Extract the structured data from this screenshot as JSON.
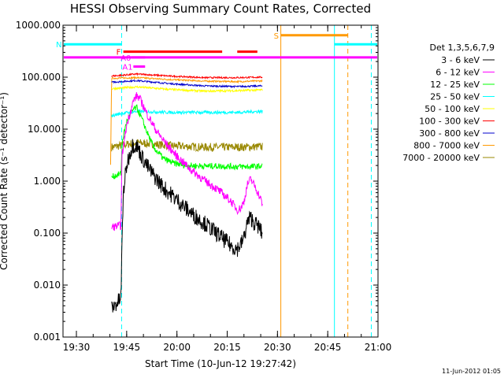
{
  "chart_data": {
    "type": "line",
    "title": "HESSI Observing Summary Count Rates, Corrected",
    "xlabel": "Start Time (10-Jun-12 19:27:42)",
    "ylabel": "Corrected Count Rate (s⁻¹ detector⁻¹)",
    "y_scale": "log",
    "ylim": [
      0.001,
      1000
    ],
    "xlim_minutes": [
      -2,
      92
    ],
    "x_ticks": [
      {
        "t": 2,
        "label": "19:30"
      },
      {
        "t": 17,
        "label": "19:45"
      },
      {
        "t": 32,
        "label": "20:00"
      },
      {
        "t": 47,
        "label": "20:15"
      },
      {
        "t": 62,
        "label": "20:30"
      },
      {
        "t": 77,
        "label": "20:45"
      },
      {
        "t": 92,
        "label": "21:00"
      }
    ],
    "y_ticks": [
      {
        "v": 0.001,
        "label": "0.001"
      },
      {
        "v": 0.01,
        "label": "0.010"
      },
      {
        "v": 0.1,
        "label": "0.100"
      },
      {
        "v": 1,
        "label": "1.000"
      },
      {
        "v": 10,
        "label": "10.000"
      },
      {
        "v": 100,
        "label": "100.000"
      },
      {
        "v": 1000,
        "label": "1000.000"
      }
    ],
    "legend_title": "Det 1,3,5,6,7,9",
    "legend_placement": "right",
    "series": [
      {
        "name": "3 - 6 keV",
        "color": "#000000",
        "noise": 0.16,
        "points": [
          [
            12.5,
            0.0035
          ],
          [
            15.3,
            0.0055
          ],
          [
            15.5,
            0.03
          ],
          [
            16,
            0.6
          ],
          [
            17,
            2.0
          ],
          [
            18,
            3.5
          ],
          [
            18.8,
            5.0
          ],
          [
            20,
            4.8
          ],
          [
            21.5,
            3.0
          ],
          [
            23,
            2.0
          ],
          [
            25,
            1.3
          ],
          [
            28,
            0.75
          ],
          [
            31,
            0.5
          ],
          [
            34,
            0.33
          ],
          [
            37,
            0.22
          ],
          [
            40,
            0.16
          ],
          [
            43,
            0.11
          ],
          [
            46,
            0.075
          ],
          [
            48.5,
            0.055
          ],
          [
            50,
            0.05
          ],
          [
            51,
            0.06
          ],
          [
            52,
            0.08
          ],
          [
            53,
            0.16
          ],
          [
            54,
            0.2
          ],
          [
            55,
            0.16
          ],
          [
            56.5,
            0.13
          ],
          [
            57.5,
            0.095
          ]
        ]
      },
      {
        "name": "6 - 12 keV",
        "color": "#ff00ff",
        "noise": 0.08,
        "points": [
          [
            12.5,
            0.13
          ],
          [
            15.3,
            0.14
          ],
          [
            15.6,
            3.0
          ],
          [
            17,
            12
          ],
          [
            19,
            35
          ],
          [
            20,
            44
          ],
          [
            21,
            38
          ],
          [
            23,
            20
          ],
          [
            26,
            9
          ],
          [
            29,
            5
          ],
          [
            32,
            3
          ],
          [
            36,
            1.7
          ],
          [
            40,
            1.05
          ],
          [
            44,
            0.7
          ],
          [
            48,
            0.42
          ],
          [
            50,
            0.28
          ],
          [
            51,
            0.3
          ],
          [
            52,
            0.4
          ],
          [
            53,
            0.85
          ],
          [
            54,
            1.1
          ],
          [
            55.5,
            0.75
          ],
          [
            57,
            0.45
          ],
          [
            57.5,
            0.36
          ]
        ]
      },
      {
        "name": "12 - 25 keV",
        "color": "#00ff00",
        "noise": 0.06,
        "points": [
          [
            12.5,
            1.2
          ],
          [
            15.3,
            1.4
          ],
          [
            15.7,
            6
          ],
          [
            17,
            14
          ],
          [
            19,
            24
          ],
          [
            20,
            26
          ],
          [
            21.5,
            16
          ],
          [
            23,
            9
          ],
          [
            25,
            4.5
          ],
          [
            28,
            2.7
          ],
          [
            31,
            2.2
          ],
          [
            35,
            2.0
          ],
          [
            40,
            1.95
          ],
          [
            45,
            1.95
          ],
          [
            50,
            1.9
          ],
          [
            55,
            1.9
          ],
          [
            57.5,
            1.95
          ]
        ]
      },
      {
        "name": "25 - 50 keV",
        "color": "#00ffff",
        "noise": 0.03,
        "points": [
          [
            12.5,
            18
          ],
          [
            15.3,
            20
          ],
          [
            20,
            22
          ],
          [
            30,
            21
          ],
          [
            40,
            21
          ],
          [
            50,
            21
          ],
          [
            57.5,
            22
          ]
        ]
      },
      {
        "name": "50 - 100 keV",
        "color": "#ffff00",
        "noise": 0.02,
        "points": [
          [
            12.5,
            60
          ],
          [
            20,
            65
          ],
          [
            30,
            58
          ],
          [
            40,
            54
          ],
          [
            50,
            55
          ],
          [
            57.5,
            57
          ]
        ]
      },
      {
        "name": "100 - 300 keV",
        "color": "#ff0000",
        "noise": 0.015,
        "points": [
          [
            12.5,
            105
          ],
          [
            20,
            115
          ],
          [
            30,
            105
          ],
          [
            40,
            98
          ],
          [
            50,
            98
          ],
          [
            57.5,
            100
          ]
        ]
      },
      {
        "name": "300 - 800 keV",
        "color": "#0000cc",
        "noise": 0.015,
        "points": [
          [
            12.5,
            80
          ],
          [
            20,
            86
          ],
          [
            30,
            75
          ],
          [
            40,
            68
          ],
          [
            50,
            66
          ],
          [
            57.5,
            68
          ]
        ]
      },
      {
        "name": "800 - 7000 keV",
        "color": "#ff9900",
        "noise": 0.015,
        "points": [
          [
            12.2,
            2.0
          ],
          [
            12.5,
            95
          ],
          [
            20,
            98
          ],
          [
            30,
            90
          ],
          [
            40,
            84
          ],
          [
            50,
            82
          ],
          [
            57.5,
            85
          ]
        ]
      },
      {
        "name": "7000 - 20000 keV",
        "color": "#998800",
        "noise": 0.08,
        "points": [
          [
            12.5,
            4.5
          ],
          [
            20,
            5.5
          ],
          [
            30,
            4.8
          ],
          [
            40,
            4.5
          ],
          [
            50,
            4.5
          ],
          [
            57.5,
            4.6
          ]
        ]
      }
    ],
    "flags": [
      {
        "label": "N",
        "color": "#00ffff",
        "y": 430,
        "segments": [
          [
            -2,
            15.5
          ],
          [
            79,
            92
          ]
        ]
      },
      {
        "label": "S",
        "color": "#ff9900",
        "y": 640,
        "segments": [
          [
            63,
            83
          ]
        ]
      },
      {
        "label": "F",
        "color": "#ff0000",
        "y": 310,
        "segments": [
          [
            16,
            45.5
          ],
          [
            50,
            56
          ]
        ]
      },
      {
        "label": "",
        "color": "#ff00ff",
        "y": 240,
        "segments": [
          [
            -2,
            92
          ]
        ]
      },
      {
        "label": "A1",
        "color": "#ff00ff",
        "y": 160,
        "segments": [
          [
            19,
            22.5
          ]
        ]
      },
      {
        "label": "A0",
        "color": "#ff00ff",
        "y": 240,
        "segments": [
          [
            18.5,
            22.5
          ]
        ]
      }
    ],
    "vlines": [
      {
        "t": 15.5,
        "color": "#00ffff",
        "dashed": true
      },
      {
        "t": 79,
        "color": "#00ffff",
        "dashed": false
      },
      {
        "t": 90,
        "color": "#00ffff",
        "dashed": true
      },
      {
        "t": 63,
        "color": "#ff9900",
        "dashed": false
      },
      {
        "t": 83,
        "color": "#ff9900",
        "dashed": true
      }
    ]
  },
  "footer": {
    "stamp": "11-Jun-2012 01:05"
  }
}
